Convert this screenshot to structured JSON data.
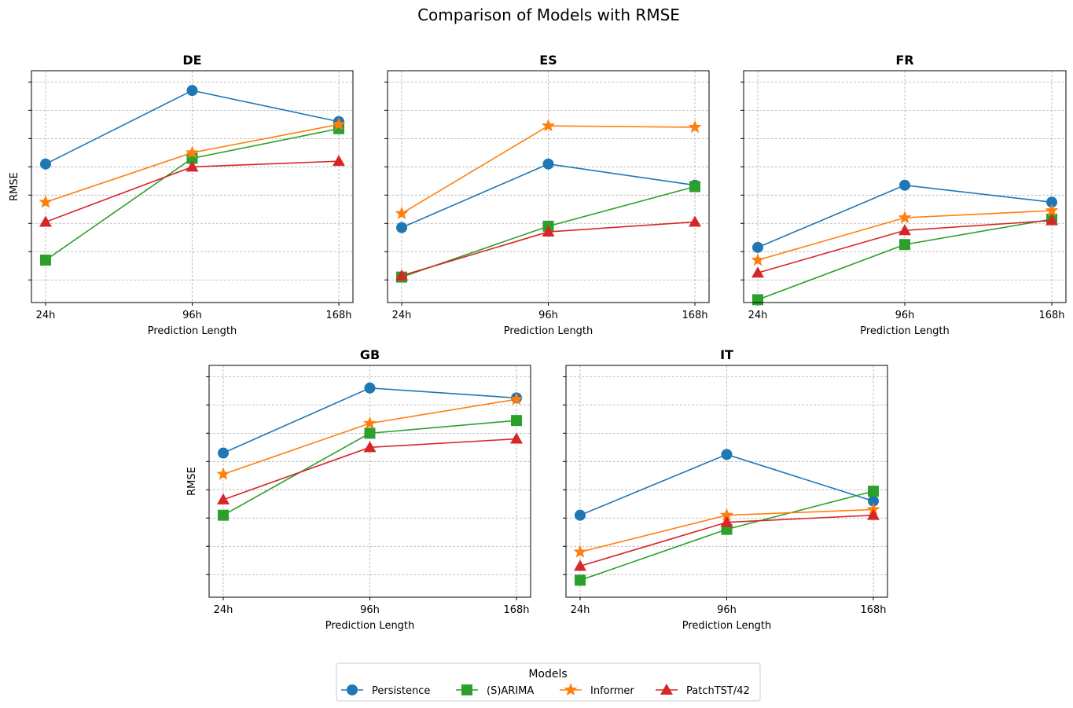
{
  "figure": {
    "title": "Comparison of Models with RMSE"
  },
  "colors": {
    "Persistence": "#1f77b4",
    "(S)ARIMA": "#2ca02c",
    "Informer": "#ff7f0e",
    "PatchTST/42": "#d62728",
    "grid": "#b0b0b0"
  },
  "legend": {
    "title": "Models",
    "placement": "bottom-center",
    "items": [
      {
        "label": "Persistence",
        "marker": "circle"
      },
      {
        "label": "(S)ARIMA",
        "marker": "square"
      },
      {
        "label": "Informer",
        "marker": "star"
      },
      {
        "label": "PatchTST/42",
        "marker": "triangle"
      }
    ]
  },
  "chart_data": [
    {
      "type": "line",
      "title": "DE",
      "xlabel": "Prediction Length",
      "ylabel": "RMSE",
      "categories": [
        "24h",
        "96h",
        "168h"
      ],
      "ylim": [
        0.2,
        8.4
      ],
      "y_tick_labels_shown": false,
      "grid": true,
      "series": [
        {
          "name": "Persistence",
          "values": [
            5.1,
            7.7,
            6.6
          ]
        },
        {
          "name": "(S)ARIMA",
          "values": [
            1.7,
            5.3,
            6.35
          ]
        },
        {
          "name": "Informer",
          "values": [
            3.75,
            5.5,
            6.5
          ]
        },
        {
          "name": "PatchTST/42",
          "values": [
            3.05,
            5.0,
            5.2
          ]
        }
      ]
    },
    {
      "type": "line",
      "title": "ES",
      "xlabel": "Prediction Length",
      "ylabel": "",
      "categories": [
        "24h",
        "96h",
        "168h"
      ],
      "ylim": [
        0.2,
        8.4
      ],
      "y_tick_labels_shown": false,
      "grid": true,
      "series": [
        {
          "name": "Persistence",
          "values": [
            2.85,
            5.1,
            4.35
          ]
        },
        {
          "name": "(S)ARIMA",
          "values": [
            1.1,
            2.9,
            4.3
          ]
        },
        {
          "name": "Informer",
          "values": [
            3.35,
            6.45,
            6.4
          ]
        },
        {
          "name": "PatchTST/42",
          "values": [
            1.15,
            2.7,
            3.05
          ]
        }
      ]
    },
    {
      "type": "line",
      "title": "FR",
      "xlabel": "Prediction Length",
      "ylabel": "",
      "categories": [
        "24h",
        "96h",
        "168h"
      ],
      "ylim": [
        0.2,
        8.4
      ],
      "y_tick_labels_shown": false,
      "grid": true,
      "series": [
        {
          "name": "Persistence",
          "values": [
            2.15,
            4.35,
            3.75
          ]
        },
        {
          "name": "(S)ARIMA",
          "values": [
            0.3,
            2.25,
            3.15
          ]
        },
        {
          "name": "Informer",
          "values": [
            1.7,
            3.2,
            3.45
          ]
        },
        {
          "name": "PatchTST/42",
          "values": [
            1.25,
            2.75,
            3.1
          ]
        }
      ]
    },
    {
      "type": "line",
      "title": "GB",
      "xlabel": "Prediction Length",
      "ylabel": "RMSE",
      "categories": [
        "24h",
        "96h",
        "168h"
      ],
      "ylim": [
        0.2,
        8.4
      ],
      "y_tick_labels_shown": false,
      "grid": true,
      "series": [
        {
          "name": "Persistence",
          "values": [
            5.3,
            7.6,
            7.25
          ]
        },
        {
          "name": "(S)ARIMA",
          "values": [
            3.1,
            6.0,
            6.45
          ]
        },
        {
          "name": "Informer",
          "values": [
            4.55,
            6.35,
            7.2
          ]
        },
        {
          "name": "PatchTST/42",
          "values": [
            3.65,
            5.5,
            5.8
          ]
        }
      ]
    },
    {
      "type": "line",
      "title": "IT",
      "xlabel": "Prediction Length",
      "ylabel": "",
      "categories": [
        "24h",
        "96h",
        "168h"
      ],
      "ylim": [
        0.2,
        8.4
      ],
      "y_tick_labels_shown": false,
      "grid": true,
      "series": [
        {
          "name": "Persistence",
          "values": [
            3.1,
            5.25,
            3.6
          ]
        },
        {
          "name": "(S)ARIMA",
          "values": [
            0.8,
            2.6,
            3.95
          ]
        },
        {
          "name": "Informer",
          "values": [
            1.8,
            3.1,
            3.3
          ]
        },
        {
          "name": "PatchTST/42",
          "values": [
            1.3,
            2.85,
            3.1
          ]
        }
      ]
    }
  ]
}
